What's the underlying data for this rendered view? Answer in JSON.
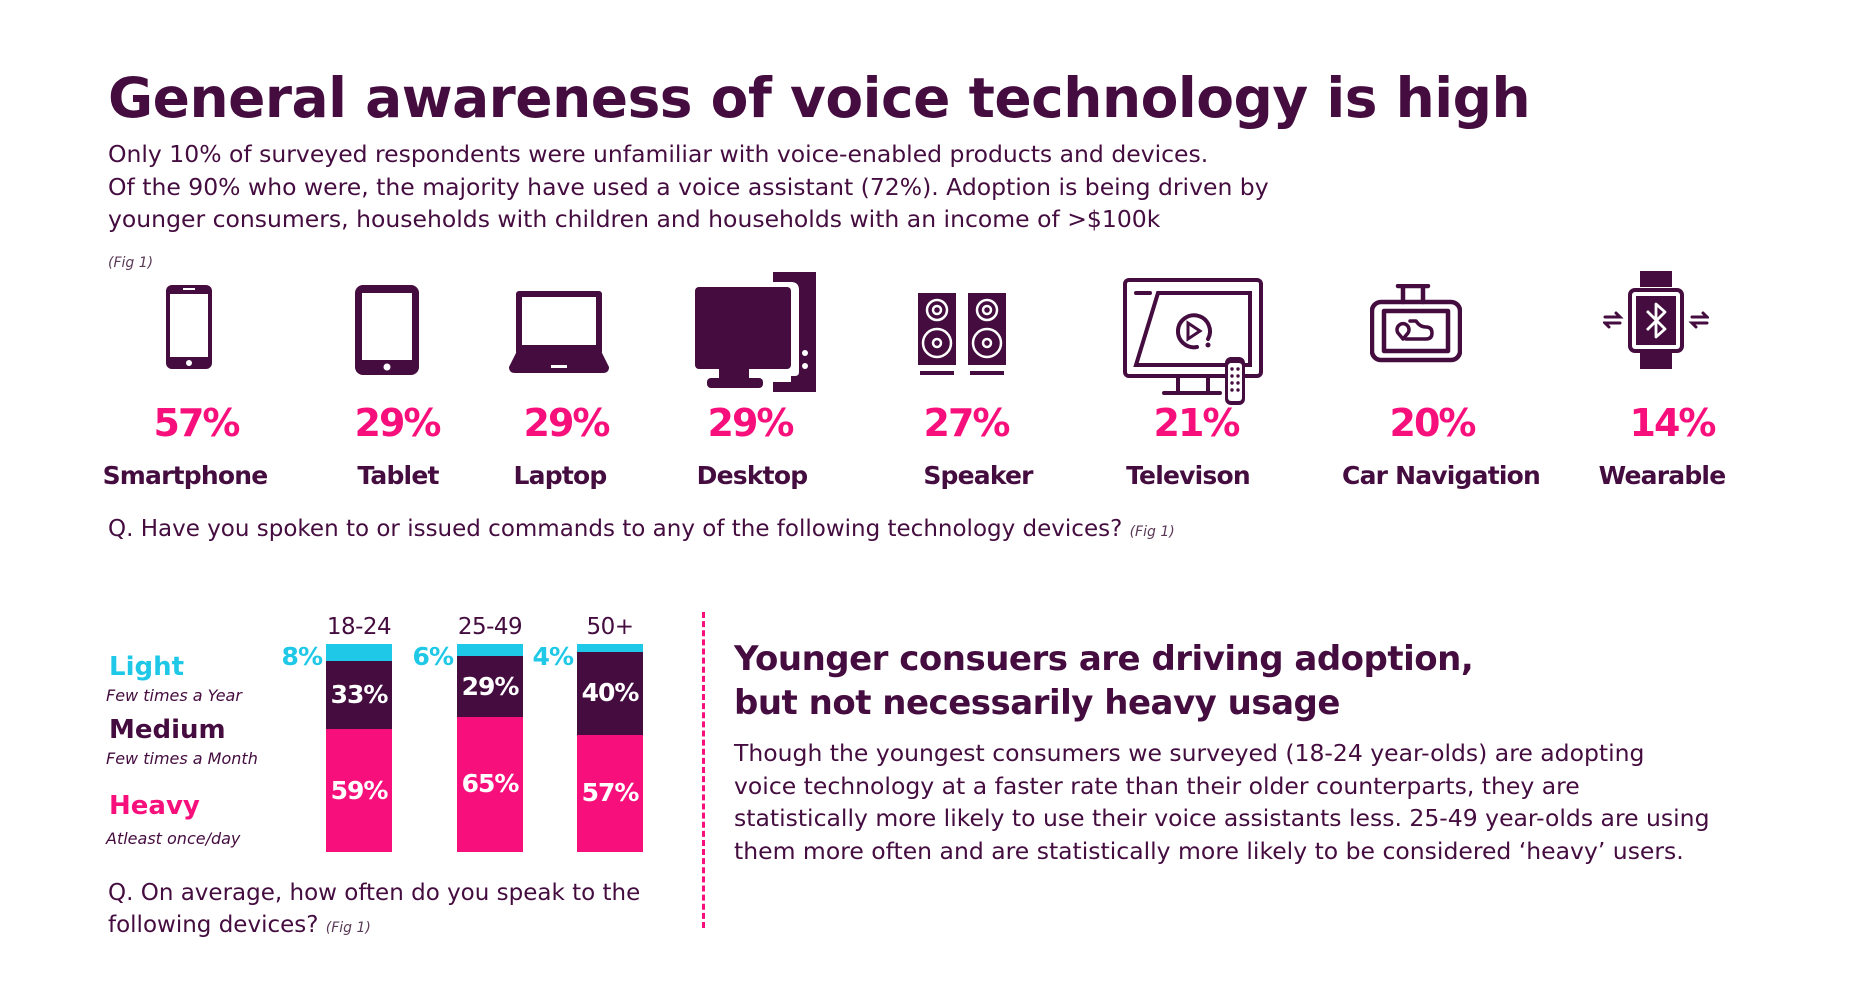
{
  "header": {
    "title": "General awareness of voice technology is high",
    "intro_lines": [
      "Only 10% of surveyed respondents were unfamiliar with voice-enabled products and devices.",
      "Of the 90% who were, the majority have used a voice assistant (72%). Adoption is being driven by",
      "younger consumers, households with children and households with an income of >$100k"
    ],
    "fig_label": "(Fig 1)"
  },
  "devices": {
    "items": [
      {
        "icon": "smartphone-icon",
        "percent": "57%",
        "label": "Smartphone"
      },
      {
        "icon": "tablet-icon",
        "percent": "29%",
        "label": "Tablet"
      },
      {
        "icon": "laptop-icon",
        "percent": "29%",
        "label": "Laptop"
      },
      {
        "icon": "desktop-icon",
        "percent": "29%",
        "label": "Desktop"
      },
      {
        "icon": "speaker-icon",
        "percent": "27%",
        "label": "Speaker"
      },
      {
        "icon": "television-icon",
        "percent": "21%",
        "label": "Televison"
      },
      {
        "icon": "car-navigation-icon",
        "percent": "20%",
        "label": "Car Navigation"
      },
      {
        "icon": "wearable-icon",
        "percent": "14%",
        "label": "Wearable"
      }
    ],
    "question": "Q. Have you spoken to or issued commands to any of the following technology devices?",
    "question_fig": "(Fig 1)"
  },
  "usage": {
    "legend": [
      {
        "title": "Light",
        "subtitle": "Few times a Year"
      },
      {
        "title": "Medium",
        "subtitle": "Few times a Month"
      },
      {
        "title": "Heavy",
        "subtitle": "Atleast once/day"
      }
    ],
    "question_lines": [
      "Q. On average, how often do you speak to the",
      "following devices?"
    ],
    "question_fig": "(Fig 1)"
  },
  "colors": {
    "primary": "#440c3f",
    "accent_pink": "#f7107c",
    "accent_cyan": "#1ec8e6",
    "background": "#ffffff"
  },
  "side": {
    "heading_lines": [
      "Younger consuers are driving adoption,",
      "but not necessarily heavy usage"
    ],
    "body_lines": [
      "Though the youngest consumers we surveyed (18-24 year-olds) are adopting",
      "voice technology at a faster rate than their older counterparts, they are",
      "statistically more likely to use their voice assistants less. 25-49 year-olds are using",
      "them more often and are statistically more likely to be considered ‘heavy’ users."
    ]
  },
  "chart_data": [
    {
      "type": "bar",
      "title": "Have you spoken to or issued commands to any of the following technology devices?",
      "categories": [
        "Smartphone",
        "Tablet",
        "Laptop",
        "Desktop",
        "Speaker",
        "Televison",
        "Car Navigation",
        "Wearable"
      ],
      "values": [
        57,
        29,
        29,
        29,
        27,
        21,
        20,
        14
      ],
      "unit": "%",
      "xlabel": "",
      "ylabel": ""
    },
    {
      "type": "bar",
      "stacked": true,
      "title": "On average, how often do you speak to the following devices?",
      "categories": [
        "18-24",
        "25-49",
        "50+"
      ],
      "series": [
        {
          "name": "Heavy",
          "values": [
            59,
            65,
            57
          ],
          "labels": [
            "59%",
            "65%",
            "57%"
          ],
          "color": "#f7107c"
        },
        {
          "name": "Medium",
          "values": [
            33,
            29,
            40
          ],
          "labels": [
            "33%",
            "29%",
            "40%"
          ],
          "color": "#440c3f"
        },
        {
          "name": "Light",
          "values": [
            8,
            6,
            4
          ],
          "labels": [
            "8%",
            "6%",
            "4%"
          ],
          "color": "#1ec8e6"
        }
      ],
      "ylim": [
        0,
        100
      ],
      "legend": "left",
      "grid": false
    }
  ]
}
